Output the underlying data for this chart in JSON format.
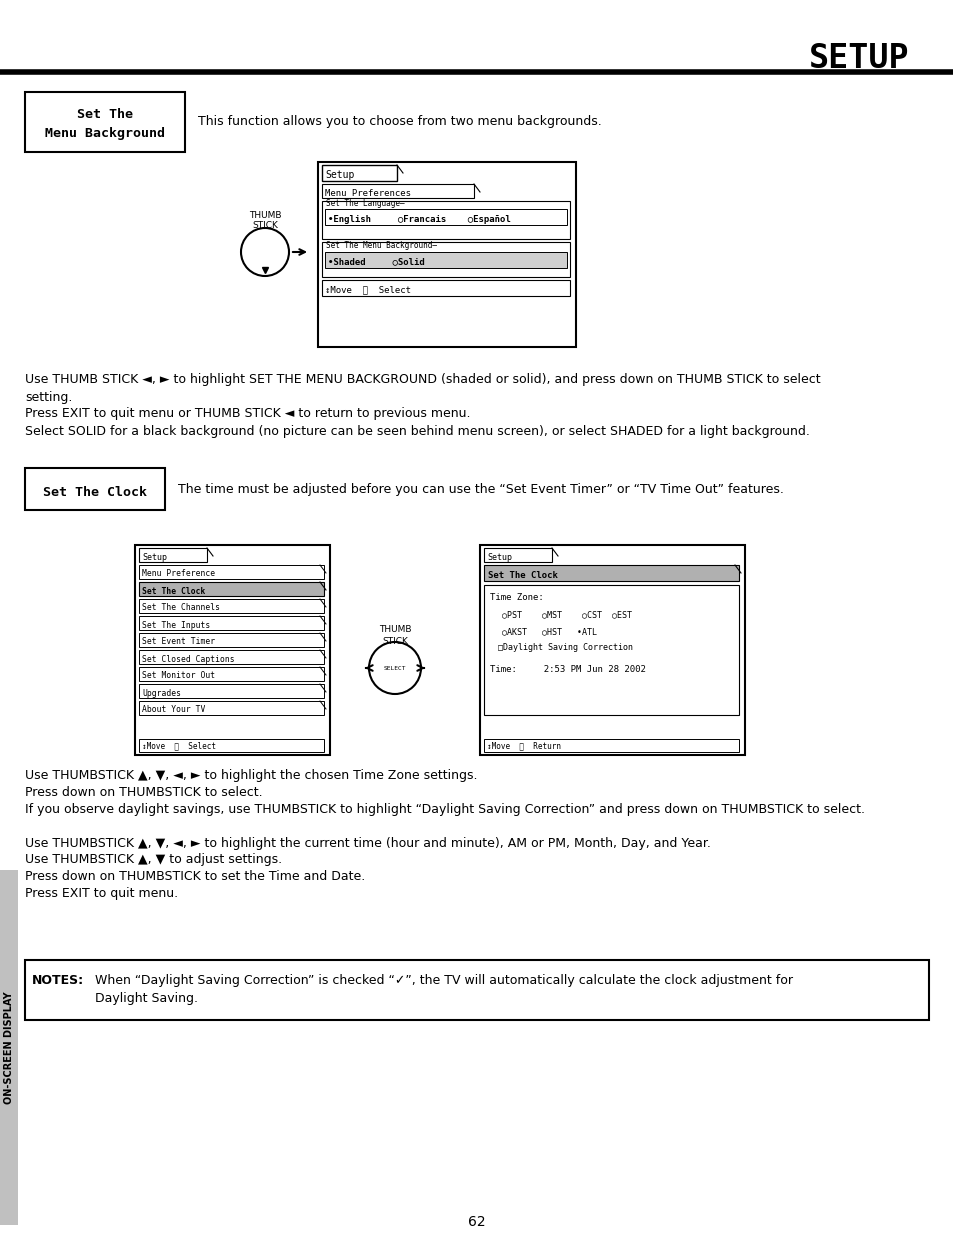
{
  "page_title": "SETUP",
  "page_number": "62",
  "sidebar_text": "ON-SCREEN DISPLAY",
  "section1_label": "Set The\nMenu Background",
  "section1_desc": "This function allows you to choose from two menu backgrounds.",
  "section1_body": [
    "Use THUMB STICK ◄, ► to highlight SET THE MENU BACKGROUND (shaded or solid), and press down on THUMB STICK to select",
    "setting.",
    "Press EXIT to quit menu or THUMB STICK ◄ to return to previous menu.",
    "Select SOLID for a black background (no picture can be seen behind menu screen), or select SHADED for a light background."
  ],
  "section2_label": "Set The Clock",
  "section2_desc": "The time must be adjusted before you can use the “Set Event Timer” or “TV Time Out” features.",
  "menu_left_items": [
    "Menu Preference",
    "Set The Clock",
    "Set The Channels",
    "Set The Inputs",
    "Set Event Timer",
    "Set Closed Captions",
    "Set Monitor Out",
    "Upgrades",
    "About Your TV"
  ],
  "section2_body": [
    "Use THUMBSTICK ▲, ▼, ◄, ► to highlight the chosen Time Zone settings.",
    "Press down on THUMBSTICK to select.",
    "If you observe daylight savings, use THUMBSTICK to highlight “Daylight Saving Correction” and press down on THUMBSTICK to select.",
    "",
    "Use THUMBSTICK ▲, ▼, ◄, ► to highlight the current time (hour and minute), AM or PM, Month, Day, and Year.",
    "Use THUMBSTICK ▲, ▼ to adjust settings.",
    "Press down on THUMBSTICK to set the Time and Date.",
    "Press EXIT to quit menu."
  ],
  "notes_bold": "NOTES:",
  "notes_text": "When “Daylight Saving Correction” is checked “✓”, the TV will automatically calculate the clock adjustment for\nDaylight Saving.",
  "bg_color": "#ffffff"
}
